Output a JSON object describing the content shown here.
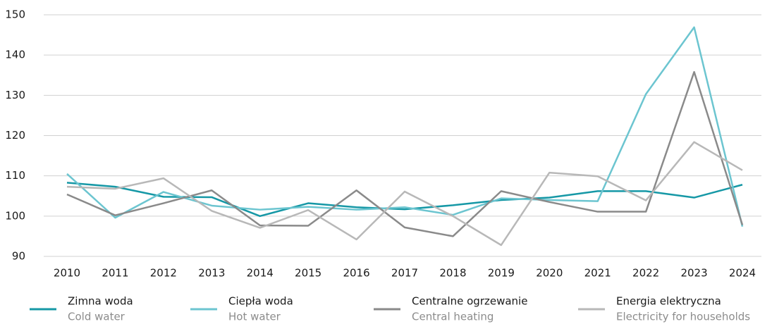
{
  "chart_data": {
    "type": "line",
    "x": [
      "2010",
      "2011",
      "2012",
      "2013",
      "2014",
      "2015",
      "2016",
      "2017",
      "2018",
      "2019",
      "2020",
      "2021",
      "2022",
      "2023",
      "2024"
    ],
    "series": [
      {
        "name": "Zimna woda",
        "name_en": "Cold water",
        "color": "#1698a6",
        "values": [
          108.3,
          107.3,
          104.8,
          104.7,
          100.0,
          103.2,
          102.2,
          101.7,
          102.7,
          104.0,
          104.6,
          106.2,
          106.2,
          104.6,
          107.8
        ]
      },
      {
        "name": "Ciepła woda",
        "name_en": "Hot water",
        "color": "#6cc5d0",
        "values": [
          110.5,
          99.6,
          106.0,
          102.6,
          101.6,
          102.3,
          101.6,
          102.2,
          100.3,
          104.4,
          104.0,
          103.7,
          130.3,
          146.9,
          97.4
        ]
      },
      {
        "name": "Centralne ogrzewanie",
        "name_en": "Central heating",
        "color": "#8a8a8a",
        "values": [
          105.4,
          100.2,
          103.2,
          106.4,
          97.7,
          97.6,
          106.4,
          97.2,
          95.0,
          106.2,
          103.5,
          101.1,
          101.1,
          135.8,
          97.8
        ]
      },
      {
        "name": "Energia elektryczna",
        "name_en": "Electricity for households",
        "color": "#b8b8b8",
        "values": [
          107.3,
          106.8,
          109.4,
          101.3,
          97.1,
          101.5,
          94.2,
          106.1,
          100.0,
          92.8,
          110.8,
          109.9,
          103.9,
          118.4,
          111.4
        ]
      }
    ],
    "ylim": [
      90,
      150
    ],
    "yticks": [
      90,
      100,
      110,
      120,
      130,
      140,
      150
    ],
    "grid": true
  }
}
